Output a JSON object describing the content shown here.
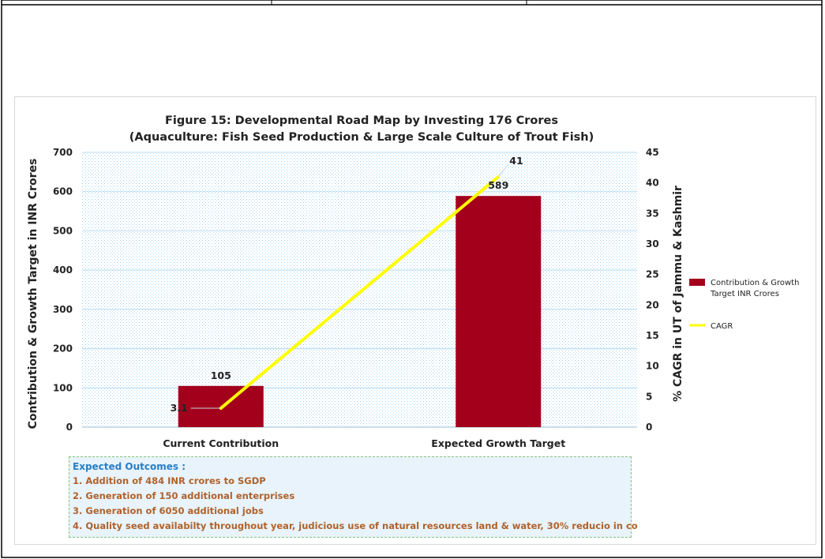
{
  "chart_data": {
    "type": "bar",
    "title": "Figure 15: Developmental Road Map by Investing 176 Crores",
    "subtitle": "(Aquaculture: Fish Seed Production & Large Scale Culture of Trout Fish)",
    "categories": [
      "Current Contribution",
      "Expected Growth Target"
    ],
    "series": [
      {
        "name": "Contribution  & Growth Target INR Crores",
        "type": "bar",
        "axis": "left",
        "color": "#a3001c",
        "values": [
          105,
          589
        ]
      },
      {
        "name": "CAGR",
        "type": "line",
        "axis": "right",
        "color": "#ffff00",
        "values": [
          3.1,
          41
        ]
      }
    ],
    "ylabel": "Contribution & Growth Target in INR Crores",
    "y2label": "% CAGR in UT of Jammu & Kashmir",
    "ylim": [
      0,
      700
    ],
    "y2lim": [
      0,
      45
    ],
    "yticks": [
      0,
      100,
      200,
      300,
      400,
      500,
      600,
      700
    ],
    "y2ticks": [
      0,
      5,
      10,
      15,
      20,
      25,
      30,
      35,
      40,
      45
    ],
    "grid": true,
    "legend_position": "right"
  },
  "outcomes": {
    "title": "Expected Outcomes :",
    "items": [
      "1. Addition of 484 INR crores to SGDP",
      "2. Generation of 150 additional enterprises",
      "3. Generation of 6050 additional jobs",
      "4. Quality seed availabilty throughout year, judicious use of natural resources land & water, 30% reducio in co"
    ]
  }
}
